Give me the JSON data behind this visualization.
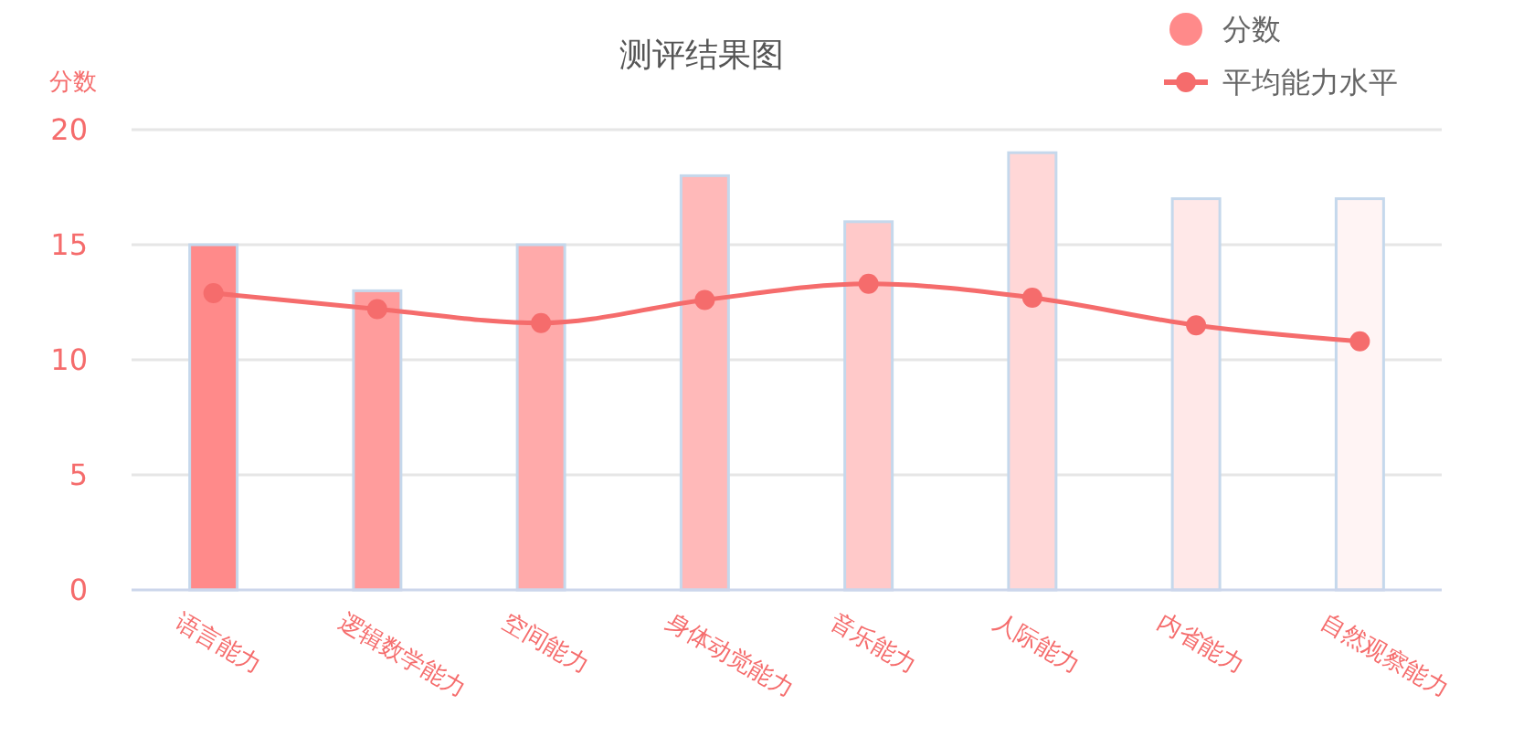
{
  "chart_data": {
    "type": "bar",
    "title": "测评结果图",
    "ylabel": "分数",
    "categories": [
      "语言能力",
      "逻辑数学能力",
      "空间能力",
      "身体动觉能力",
      "音乐能力",
      "人际能力",
      "内省能力",
      "自然观察能力"
    ],
    "series": [
      {
        "name": "分数",
        "colors": [
          "#ff8a8a",
          "#ff9c9c",
          "#ffaaaa",
          "#ffb9b9",
          "#ffc9c9",
          "#ffd7d7",
          "#ffe8e8",
          "#fff4f4"
        ],
        "values": [
          15,
          13,
          15,
          18,
          16,
          19,
          17,
          17
        ]
      },
      {
        "name": "平均能力水平",
        "type": "line",
        "color": "#f56c6c",
        "marker": "circle",
        "line_style": "solid",
        "values": [
          12.9,
          12.2,
          11.6,
          12.6,
          13.3,
          12.7,
          11.5,
          10.8
        ]
      }
    ],
    "ylim": [
      0,
      20
    ],
    "yticks": [
      0,
      5,
      10,
      15,
      20
    ],
    "grid": "y",
    "legend": "top right"
  }
}
